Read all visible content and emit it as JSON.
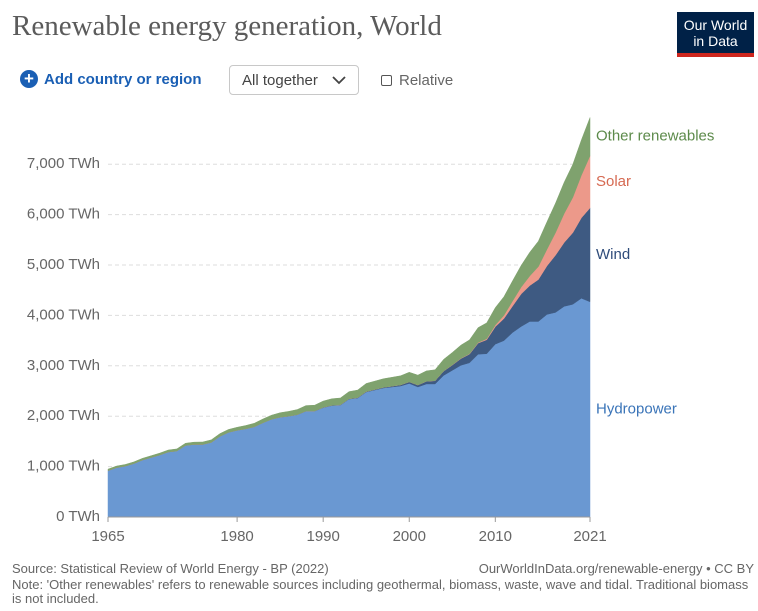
{
  "header": {
    "title": "Renewable energy generation, World",
    "logo": [
      "Our World",
      "in Data"
    ]
  },
  "controls": {
    "add": "Add country or region",
    "mode": "All together",
    "relative": "Relative"
  },
  "footer": {
    "source": "Source: Statistical Review of World Energy - BP (2022)",
    "link": "OurWorldInData.org/renewable-energy • CC BY",
    "note": "Note: 'Other renewables' refers to renewable sources including geothermal, biomass, waste, wave and tidal. Traditional biomass is not included."
  },
  "chart_data": {
    "type": "stacked_area",
    "x": [
      1965,
      1966,
      1967,
      1968,
      1969,
      1970,
      1971,
      1972,
      1973,
      1974,
      1975,
      1976,
      1977,
      1978,
      1979,
      1980,
      1981,
      1982,
      1983,
      1984,
      1985,
      1986,
      1987,
      1988,
      1989,
      1990,
      1991,
      1992,
      1993,
      1994,
      1995,
      1996,
      1997,
      1998,
      1999,
      2000,
      2001,
      2002,
      2003,
      2004,
      2005,
      2006,
      2007,
      2008,
      2009,
      2010,
      2011,
      2012,
      2013,
      2014,
      2015,
      2016,
      2017,
      2018,
      2019,
      2020,
      2021
    ],
    "series": [
      {
        "name": "Hydropower",
        "color": "#6a98d2",
        "label_color": "#3a74b8",
        "values": [
          920,
          980,
          1010,
          1060,
          1130,
          1180,
          1230,
          1290,
          1310,
          1420,
          1440,
          1440,
          1480,
          1600,
          1680,
          1720,
          1750,
          1790,
          1870,
          1940,
          1980,
          2000,
          2030,
          2100,
          2100,
          2170,
          2210,
          2220,
          2340,
          2360,
          2480,
          2520,
          2560,
          2580,
          2600,
          2650,
          2580,
          2640,
          2640,
          2810,
          2910,
          3010,
          3060,
          3230,
          3240,
          3430,
          3500,
          3660,
          3780,
          3880,
          3880,
          4020,
          4060,
          4180,
          4220,
          4340,
          4270
        ]
      },
      {
        "name": "Wind",
        "color": "#3e5a82",
        "label_color": "#2f4c7a",
        "values": [
          0,
          0,
          0,
          0,
          0,
          0,
          0,
          0,
          0,
          0,
          0,
          0,
          0,
          0,
          0,
          0,
          0,
          0,
          0,
          0,
          1,
          1,
          2,
          3,
          3,
          4,
          5,
          5,
          6,
          7,
          8,
          10,
          12,
          16,
          21,
          31,
          38,
          52,
          63,
          85,
          104,
          133,
          171,
          220,
          277,
          346,
          437,
          524,
          645,
          712,
          831,
          962,
          1136,
          1266,
          1420,
          1596,
          1862
        ]
      },
      {
        "name": "Solar",
        "color": "#ec998a",
        "label_color": "#d66a52",
        "values": [
          0,
          0,
          0,
          0,
          0,
          0,
          0,
          0,
          0,
          0,
          0,
          0,
          0,
          0,
          0,
          0,
          0,
          0,
          0,
          0,
          0,
          0,
          0,
          0,
          0,
          1,
          1,
          1,
          1,
          1,
          1,
          1,
          1,
          1,
          1,
          1,
          2,
          2,
          3,
          3,
          4,
          6,
          8,
          12,
          20,
          33,
          64,
          100,
          135,
          190,
          256,
          329,
          448,
          575,
          700,
          845,
          1033
        ]
      },
      {
        "name": "Other renewables",
        "color": "#7fa26e",
        "label_color": "#5c8a4a",
        "values": [
          30,
          31,
          32,
          33,
          34,
          35,
          37,
          39,
          41,
          43,
          45,
          48,
          51,
          54,
          57,
          60,
          65,
          70,
          75,
          80,
          88,
          95,
          100,
          108,
          115,
          125,
          130,
          135,
          140,
          150,
          160,
          165,
          170,
          175,
          180,
          190,
          195,
          205,
          215,
          230,
          245,
          260,
          275,
          295,
          315,
          345,
          370,
          400,
          430,
          470,
          505,
          545,
          585,
          620,
          655,
          700,
          760
        ]
      }
    ],
    "xlim": [
      1965,
      2021
    ],
    "xticks": [
      1965,
      1980,
      1990,
      2000,
      2010,
      2021
    ],
    "ylim": [
      0,
      8000
    ],
    "yticks": [
      {
        "value": 0,
        "label": "0 TWh"
      },
      {
        "value": 1000,
        "label": "1,000 TWh"
      },
      {
        "value": 2000,
        "label": "2,000 TWh"
      },
      {
        "value": 3000,
        "label": "3,000 TWh"
      },
      {
        "value": 4000,
        "label": "4,000 TWh"
      },
      {
        "value": 5000,
        "label": "5,000 TWh"
      },
      {
        "value": 6000,
        "label": "6,000 TWh"
      },
      {
        "value": 7000,
        "label": "7,000 TWh"
      }
    ],
    "grid": true
  }
}
